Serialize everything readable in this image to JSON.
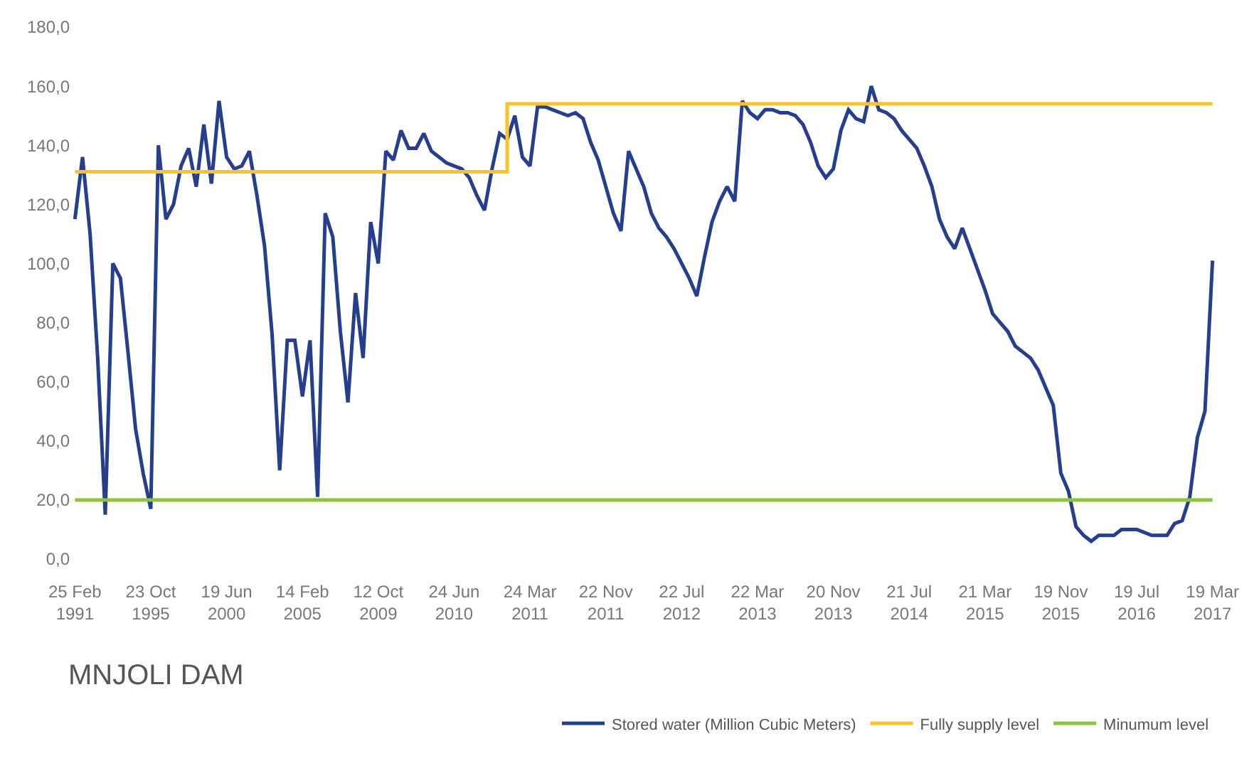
{
  "chart_data": {
    "type": "line",
    "title": "MNJOLI DAM",
    "categories": [
      "25 Feb\n1991",
      null,
      null,
      null,
      null,
      null,
      null,
      null,
      null,
      null,
      "23 Oct\n1995",
      null,
      null,
      null,
      null,
      null,
      null,
      null,
      null,
      null,
      "19 Jun\n2000",
      null,
      null,
      null,
      null,
      null,
      null,
      null,
      null,
      null,
      "14 Feb\n2005",
      null,
      null,
      null,
      null,
      null,
      null,
      null,
      null,
      null,
      "12 Oct\n2009",
      null,
      null,
      null,
      null,
      null,
      null,
      null,
      null,
      null,
      "24 Jun\n2010",
      null,
      null,
      null,
      null,
      null,
      null,
      null,
      null,
      null,
      "24 Mar\n2011",
      null,
      null,
      null,
      null,
      null,
      null,
      null,
      null,
      null,
      "22 Nov\n2011",
      null,
      null,
      null,
      null,
      null,
      null,
      null,
      null,
      null,
      "22 Jul\n2012",
      null,
      null,
      null,
      null,
      null,
      null,
      null,
      null,
      null,
      "22 Mar\n2013",
      null,
      null,
      null,
      null,
      null,
      null,
      null,
      null,
      null,
      "20 Nov\n2013",
      null,
      null,
      null,
      null,
      null,
      null,
      null,
      null,
      null,
      "21 Jul\n2014",
      null,
      null,
      null,
      null,
      null,
      null,
      null,
      null,
      null,
      "21 Mar\n2015",
      null,
      null,
      null,
      null,
      null,
      null,
      null,
      null,
      null,
      "19 Nov\n2015",
      null,
      null,
      null,
      null,
      null,
      null,
      null,
      null,
      null,
      "19 Jul\n2016",
      null,
      null,
      null,
      null,
      null,
      null,
      null,
      null,
      null,
      "19 Mar\n2017"
    ],
    "series": [
      {
        "name": "Stored water (Million Cubic Meters)",
        "color": "#253f8e",
        "values": [
          115,
          136,
          110,
          68,
          15,
          100,
          95,
          70,
          44,
          29,
          17,
          140,
          115,
          120,
          133,
          139,
          126,
          147,
          127,
          155,
          136,
          132,
          133,
          138,
          123,
          106,
          76,
          30,
          74,
          74,
          55,
          74,
          21,
          117,
          109,
          77,
          53,
          90,
          68,
          114,
          100,
          138,
          135,
          145,
          139,
          139,
          144,
          138,
          136,
          134,
          133,
          132,
          129,
          123,
          118,
          132,
          144,
          142,
          150,
          136,
          133,
          153,
          153,
          152,
          151,
          150,
          151,
          149,
          141,
          135,
          126,
          117,
          111,
          138,
          132,
          126,
          117,
          112,
          109,
          105,
          100,
          95,
          89,
          102,
          114,
          121,
          126,
          121,
          155,
          151,
          149,
          152,
          152,
          151,
          151,
          150,
          147,
          141,
          133,
          129,
          132,
          145,
          152,
          149,
          148,
          160,
          152,
          151,
          149,
          145,
          142,
          139,
          133,
          126,
          115,
          109,
          105,
          112,
          105,
          98,
          91,
          83,
          80,
          77,
          72,
          70,
          68,
          64,
          58,
          52,
          29,
          23,
          11,
          8,
          6,
          8,
          8,
          8,
          10,
          10,
          10,
          9,
          8,
          8,
          8,
          12,
          13,
          21,
          41,
          50,
          101
        ]
      },
      {
        "name": "Fully supply level",
        "color": "#fcc229",
        "type": "step",
        "values": [
          131,
          131,
          131,
          131,
          131,
          131,
          131,
          131,
          131,
          131,
          131,
          131,
          131,
          131,
          131,
          131,
          131,
          131,
          131,
          131,
          131,
          131,
          131,
          131,
          131,
          131,
          131,
          131,
          131,
          131,
          131,
          131,
          131,
          131,
          131,
          131,
          131,
          131,
          131,
          131,
          131,
          131,
          131,
          131,
          131,
          131,
          131,
          131,
          131,
          131,
          131,
          131,
          131,
          131,
          131,
          131,
          131,
          154,
          154,
          154,
          154,
          154,
          154,
          154,
          154,
          154,
          154,
          154,
          154,
          154,
          154,
          154,
          154,
          154,
          154,
          154,
          154,
          154,
          154,
          154,
          154,
          154,
          154,
          154,
          154,
          154,
          154,
          154,
          154,
          154,
          154,
          154,
          154,
          154,
          154,
          154,
          154,
          154,
          154,
          154,
          154,
          154,
          154,
          154,
          154,
          154,
          154,
          154,
          154,
          154,
          154,
          154,
          154,
          154,
          154,
          154,
          154,
          154,
          154,
          154,
          154,
          154,
          154,
          154,
          154,
          154,
          154,
          154,
          154,
          154,
          154,
          154,
          154,
          154,
          154,
          154,
          154,
          154,
          154,
          154,
          154,
          154,
          154,
          154,
          154,
          154,
          154,
          154,
          154,
          154,
          154
        ]
      },
      {
        "name": "Minumum level",
        "color": "#8cc43f",
        "values": [
          20,
          20,
          20,
          20,
          20,
          20,
          20,
          20,
          20,
          20,
          20,
          20,
          20,
          20,
          20,
          20,
          20,
          20,
          20,
          20,
          20,
          20,
          20,
          20,
          20,
          20,
          20,
          20,
          20,
          20,
          20,
          20,
          20,
          20,
          20,
          20,
          20,
          20,
          20,
          20,
          20,
          20,
          20,
          20,
          20,
          20,
          20,
          20,
          20,
          20,
          20,
          20,
          20,
          20,
          20,
          20,
          20,
          20,
          20,
          20,
          20,
          20,
          20,
          20,
          20,
          20,
          20,
          20,
          20,
          20,
          20,
          20,
          20,
          20,
          20,
          20,
          20,
          20,
          20,
          20,
          20,
          20,
          20,
          20,
          20,
          20,
          20,
          20,
          20,
          20,
          20,
          20,
          20,
          20,
          20,
          20,
          20,
          20,
          20,
          20,
          20,
          20,
          20,
          20,
          20,
          20,
          20,
          20,
          20,
          20,
          20,
          20,
          20,
          20,
          20,
          20,
          20,
          20,
          20,
          20,
          20,
          20,
          20,
          20,
          20,
          20,
          20,
          20,
          20,
          20,
          20,
          20,
          20,
          20,
          20,
          20,
          20,
          20,
          20,
          20,
          20,
          20,
          20,
          20,
          20,
          20,
          20,
          20,
          20,
          20,
          20
        ]
      }
    ],
    "ylim": [
      0,
      180
    ],
    "yticks": [
      {
        "value": 0,
        "label": "0,0"
      },
      {
        "value": 20,
        "label": "20,0"
      },
      {
        "value": 40,
        "label": "40,0"
      },
      {
        "value": 60,
        "label": "60,0"
      },
      {
        "value": 80,
        "label": "80,0"
      },
      {
        "value": 100,
        "label": "100,0"
      },
      {
        "value": 120,
        "label": "120,0"
      },
      {
        "value": 140,
        "label": "140,0"
      },
      {
        "value": 160,
        "label": "160,0"
      },
      {
        "value": 180,
        "label": "180,0"
      }
    ],
    "legend": "bottom right"
  }
}
